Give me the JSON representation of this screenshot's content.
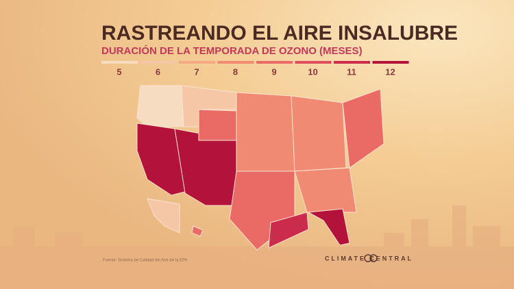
{
  "header": {
    "title": "RASTREANDO EL AIRE INSALUBRE",
    "subtitle": "DURACIÓN DE LA TEMPORADA DE OZONO (MESES)"
  },
  "legend": {
    "items": [
      {
        "label": "5",
        "color": "#f6dcc0"
      },
      {
        "label": "6",
        "color": "#f5c7a6"
      },
      {
        "label": "7",
        "color": "#f4a886"
      },
      {
        "label": "8",
        "color": "#f08a72"
      },
      {
        "label": "9",
        "color": "#ea6b66"
      },
      {
        "label": "10",
        "color": "#df4d5e"
      },
      {
        "label": "11",
        "color": "#cc2c4c"
      },
      {
        "label": "12",
        "color": "#b3123a"
      }
    ]
  },
  "map": {
    "regions": [
      5,
      6,
      12,
      12,
      9,
      8,
      9,
      11,
      8,
      8,
      12,
      9,
      6,
      9
    ]
  },
  "footer": {
    "source": "Fuente: Sistema de Calidad del Aire de la EPA",
    "logo": "CLIMATE CENTRAL"
  }
}
